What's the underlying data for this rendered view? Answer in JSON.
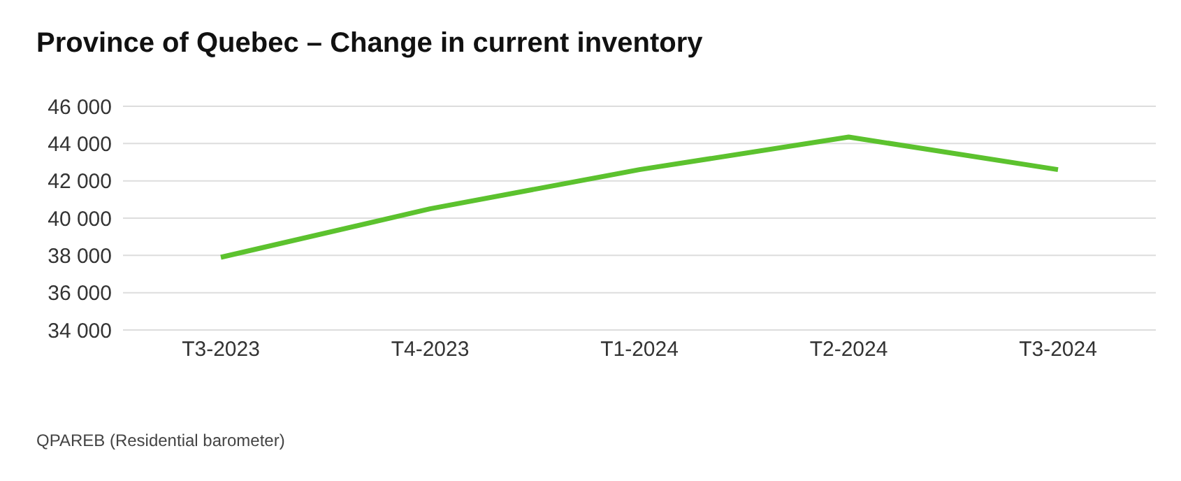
{
  "chart_data": {
    "type": "line",
    "title": "Province of Quebec – Change in current inventory",
    "categories": [
      "T3-2023",
      "T4-2023",
      "T1-2024",
      "T2-2024",
      "T3-2024"
    ],
    "series": [
      {
        "color": "#5cc22e",
        "values": [
          37900,
          40500,
          42600,
          44350,
          42600
        ]
      }
    ],
    "ylim": [
      34000,
      46000
    ],
    "yticks": [
      {
        "value": 34000,
        "label": "34 000"
      },
      {
        "value": 36000,
        "label": "36 000"
      },
      {
        "value": 38000,
        "label": "38 000"
      },
      {
        "value": 40000,
        "label": "40 000"
      },
      {
        "value": 42000,
        "label": "42 000"
      },
      {
        "value": 44000,
        "label": "44 000"
      },
      {
        "value": 46000,
        "label": "46 000"
      }
    ],
    "grid": "y",
    "marker": "none",
    "line_style": "solid",
    "annotations": [
      "QPAREB (Residential barometer)"
    ]
  }
}
